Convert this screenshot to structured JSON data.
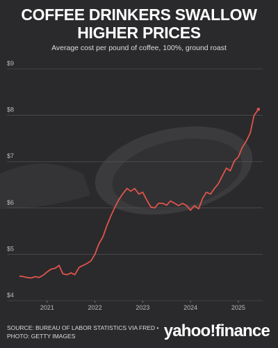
{
  "chart_data": {
    "type": "line",
    "title": "COFFEE DRINKERS SWALLOW HIGHER PRICES",
    "subtitle": "Average cost per pound of coffee, 100%, ground roast",
    "source": "SOURCE: BUREAU OF LABOR STATISTICS VIA FRED •",
    "photo_credit": "PHOTO: GETTY IMAGES",
    "logo": "yahoo!finance",
    "x": [
      2020.42,
      2020.5,
      2020.58,
      2020.67,
      2020.75,
      2020.83,
      2020.92,
      2021,
      2021.08,
      2021.17,
      2021.25,
      2021.33,
      2021.42,
      2021.5,
      2021.58,
      2021.67,
      2021.75,
      2021.83,
      2021.92,
      2022,
      2022.08,
      2022.17,
      2022.25,
      2022.33,
      2022.42,
      2022.5,
      2022.58,
      2022.67,
      2022.75,
      2022.83,
      2022.92,
      2023,
      2023.08,
      2023.17,
      2023.25,
      2023.33,
      2023.42,
      2023.5,
      2023.58,
      2023.67,
      2023.75,
      2023.83,
      2023.92,
      2024,
      2024.08,
      2024.17,
      2024.25,
      2024.33,
      2024.42,
      2024.5,
      2024.58,
      2024.67,
      2024.75,
      2024.83,
      2024.92,
      2025,
      2025.08,
      2025.17,
      2025.25,
      2025.33,
      2025.42
    ],
    "series": [
      {
        "color": "#e0544b",
        "values": [
          4.53,
          4.52,
          4.5,
          4.49,
          4.52,
          4.5,
          4.55,
          4.62,
          4.68,
          4.7,
          4.76,
          4.58,
          4.56,
          4.6,
          4.56,
          4.72,
          4.76,
          4.8,
          4.86,
          5.0,
          5.22,
          5.38,
          5.62,
          5.82,
          6.02,
          6.18,
          6.3,
          6.42,
          6.36,
          6.42,
          6.3,
          6.34,
          6.18,
          6.02,
          6.0,
          6.1,
          6.1,
          6.06,
          6.15,
          6.1,
          6.05,
          6.1,
          6.05,
          5.95,
          6.05,
          5.98,
          6.2,
          6.34,
          6.3,
          6.42,
          6.52,
          6.7,
          6.86,
          6.8,
          7.02,
          7.1,
          7.3,
          7.45,
          7.62,
          8.0,
          8.13
        ]
      }
    ],
    "xlim": [
      2020.16,
      2025.51
    ],
    "xticks": [
      2021,
      2022,
      2023,
      2024,
      2025
    ],
    "ylim": [
      4,
      9
    ],
    "yticks": [
      {
        "value": 4,
        "label": "$4"
      },
      {
        "value": 5,
        "label": "$5"
      },
      {
        "value": 6,
        "label": "$6"
      },
      {
        "value": 7,
        "label": "$7"
      },
      {
        "value": 8,
        "label": "$8"
      },
      {
        "value": 9,
        "label": "$9"
      }
    ],
    "grid": true
  }
}
